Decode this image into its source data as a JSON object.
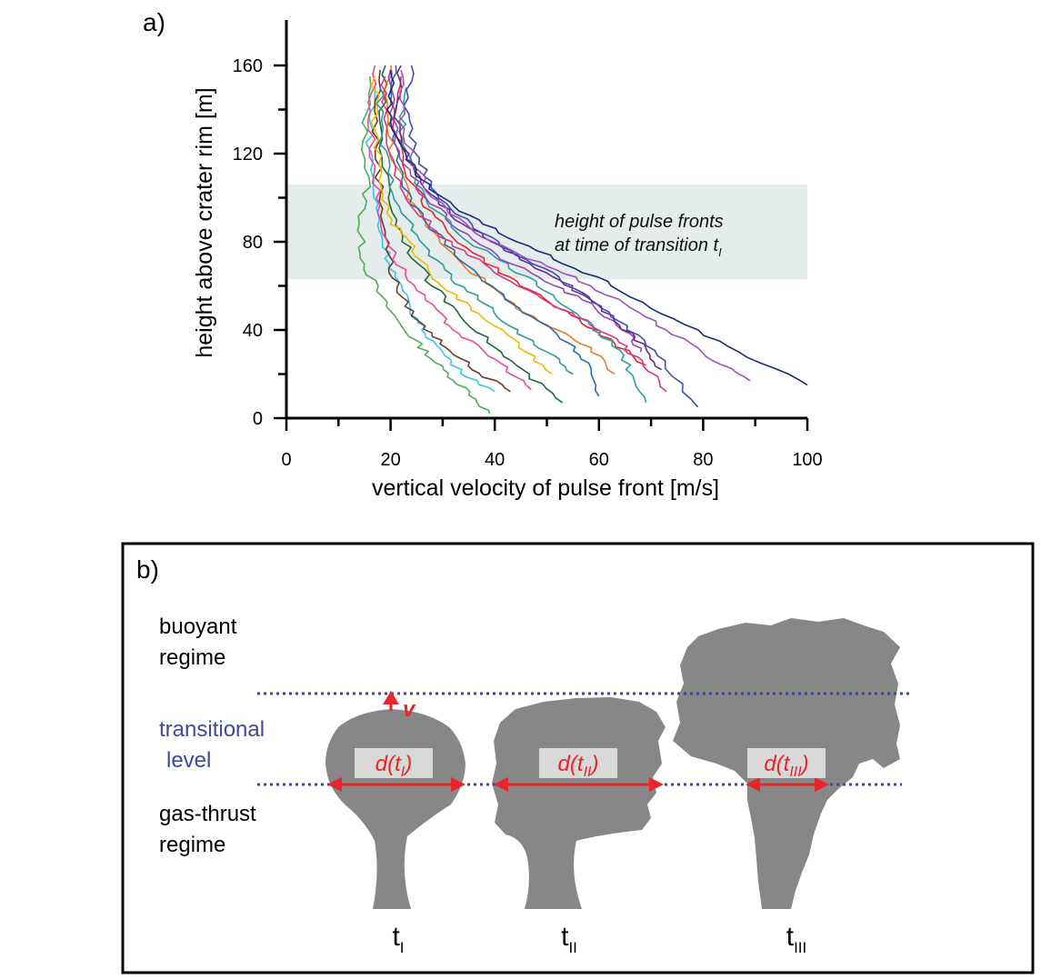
{
  "panel_a": {
    "label": "a)",
    "annotation_line1": "height of pulse fronts",
    "annotation_line2": "at time of transition t",
    "annotation_sub": "I"
  },
  "panel_b": {
    "label": "b)",
    "buoyant_1": "buoyant",
    "buoyant_2": "regime",
    "trans_1": "transitional",
    "trans_2": "level",
    "gas_1": "gas-thrust",
    "gas_2": "regime",
    "v_label": "v",
    "plumes": [
      {
        "d_main": "d(t",
        "d_sub": "I",
        "d_close": ")",
        "t_main": "t",
        "t_sub": "I"
      },
      {
        "d_main": "d(t",
        "d_sub": "II",
        "d_close": ")",
        "t_main": "t",
        "t_sub": "II"
      },
      {
        "d_main": "d(t",
        "d_sub": "III",
        "d_close": ")",
        "t_main": "t",
        "t_sub": "III"
      }
    ],
    "colors": {
      "plume": "#878787",
      "arrow": "#e8262a",
      "level_line": "#3b4aa0",
      "label_box": "#d9d9d9"
    }
  },
  "chart_data": {
    "type": "line",
    "title": "",
    "xlabel": "vertical velocity of pulse front [m/s]",
    "ylabel": "height above crater rim [m]",
    "xlim": [
      0,
      100
    ],
    "ylim": [
      0,
      170
    ],
    "x_ticks": [
      0,
      20,
      40,
      60,
      80,
      100
    ],
    "y_ticks": [
      0,
      40,
      80,
      120,
      160
    ],
    "shaded_band": {
      "y_from": 63,
      "y_to": 106,
      "x_from": 0,
      "x_to": 100,
      "color": "#e4ecec"
    },
    "grid": false,
    "legend": "none",
    "series": [
      {
        "color": "#4caf50",
        "points": [
          [
            16,
            155
          ],
          [
            15,
            130
          ],
          [
            15.5,
            105
          ],
          [
            14,
            85
          ],
          [
            15,
            70
          ],
          [
            18,
            55
          ],
          [
            22,
            42
          ],
          [
            26,
            32
          ],
          [
            30,
            22
          ],
          [
            35,
            12
          ],
          [
            39,
            2
          ]
        ]
      },
      {
        "color": "#35c4f0",
        "points": [
          [
            17,
            150
          ],
          [
            16,
            125
          ],
          [
            17,
            100
          ],
          [
            18,
            85
          ],
          [
            20,
            70
          ],
          [
            22,
            58
          ],
          [
            25,
            45
          ],
          [
            28,
            35
          ],
          [
            33,
            22
          ],
          [
            40,
            12
          ]
        ]
      },
      {
        "color": "#6b3b2a",
        "points": [
          [
            18,
            158
          ],
          [
            17,
            130
          ],
          [
            18,
            105
          ],
          [
            19,
            85
          ],
          [
            20,
            68
          ],
          [
            22,
            55
          ],
          [
            26,
            42
          ],
          [
            31,
            32
          ],
          [
            36,
            22
          ],
          [
            43,
            12
          ]
        ]
      },
      {
        "color": "#e84a9a",
        "points": [
          [
            17,
            160
          ],
          [
            16,
            135
          ],
          [
            17,
            110
          ],
          [
            18,
            90
          ],
          [
            21,
            72
          ],
          [
            25,
            58
          ],
          [
            30,
            45
          ],
          [
            35,
            35
          ],
          [
            41,
            25
          ],
          [
            47,
            13
          ]
        ]
      },
      {
        "color": "#1a6a3a",
        "points": [
          [
            19,
            160
          ],
          [
            18,
            135
          ],
          [
            19,
            110
          ],
          [
            21,
            90
          ],
          [
            24,
            75
          ],
          [
            28,
            60
          ],
          [
            34,
            46
          ],
          [
            40,
            32
          ],
          [
            46,
            20
          ],
          [
            53,
            7
          ]
        ]
      },
      {
        "color": "#f2b800",
        "points": [
          [
            17,
            155
          ],
          [
            17,
            130
          ],
          [
            18,
            108
          ],
          [
            20,
            90
          ],
          [
            24,
            78
          ],
          [
            28,
            65
          ],
          [
            33,
            54
          ],
          [
            39,
            44
          ],
          [
            45,
            32
          ],
          [
            51,
            20
          ]
        ]
      },
      {
        "color": "#2a9a9a",
        "points": [
          [
            18,
            150
          ],
          [
            18,
            128
          ],
          [
            20,
            108
          ],
          [
            23,
            90
          ],
          [
            27,
            76
          ],
          [
            32,
            63
          ],
          [
            38,
            52
          ],
          [
            44,
            40
          ],
          [
            50,
            30
          ],
          [
            55,
            20
          ]
        ]
      },
      {
        "color": "#f07820",
        "points": [
          [
            20,
            160
          ],
          [
            19,
            135
          ],
          [
            21,
            115
          ],
          [
            24,
            97
          ],
          [
            29,
            82
          ],
          [
            35,
            68
          ],
          [
            42,
            54
          ],
          [
            50,
            42
          ],
          [
            58,
            32
          ],
          [
            63,
            20
          ]
        ]
      },
      {
        "color": "#2a6ab0",
        "points": [
          [
            21,
            160
          ],
          [
            20,
            140
          ],
          [
            21,
            120
          ],
          [
            23,
            102
          ],
          [
            27,
            88
          ],
          [
            33,
            74
          ],
          [
            39,
            60
          ],
          [
            46,
            48
          ],
          [
            53,
            36
          ],
          [
            58,
            25
          ],
          [
            60,
            10
          ]
        ]
      },
      {
        "color": "#e8262a",
        "points": [
          [
            22,
            155
          ],
          [
            21,
            132
          ],
          [
            23,
            112
          ],
          [
            27,
            96
          ],
          [
            32,
            82
          ],
          [
            40,
            68
          ],
          [
            48,
            56
          ],
          [
            56,
            45
          ],
          [
            63,
            34
          ],
          [
            69,
            24
          ]
        ]
      },
      {
        "color": "#26a69a",
        "points": [
          [
            23,
            150
          ],
          [
            22,
            130
          ],
          [
            24,
            112
          ],
          [
            28,
            96
          ],
          [
            34,
            82
          ],
          [
            42,
            70
          ],
          [
            50,
            58
          ],
          [
            57,
            45
          ],
          [
            62,
            35
          ],
          [
            66,
            22
          ],
          [
            69,
            7
          ]
        ]
      },
      {
        "color": "#9c44b8",
        "points": [
          [
            20,
            158
          ],
          [
            20,
            138
          ],
          [
            22,
            118
          ],
          [
            26,
            102
          ],
          [
            32,
            88
          ],
          [
            40,
            74
          ],
          [
            50,
            62
          ],
          [
            58,
            52
          ],
          [
            65,
            40
          ],
          [
            68,
            30
          ]
        ]
      },
      {
        "color": "#6a2a90",
        "points": [
          [
            22,
            160
          ],
          [
            21,
            140
          ],
          [
            23,
            120
          ],
          [
            27,
            104
          ],
          [
            33,
            90
          ],
          [
            41,
            78
          ],
          [
            50,
            66
          ],
          [
            58,
            55
          ],
          [
            64,
            42
          ],
          [
            69,
            32
          ],
          [
            72,
            22
          ]
        ]
      },
      {
        "color": "#d83888",
        "points": [
          [
            19,
            155
          ],
          [
            19,
            132
          ],
          [
            21,
            110
          ],
          [
            25,
            94
          ],
          [
            31,
            80
          ],
          [
            39,
            68
          ],
          [
            48,
            56
          ],
          [
            56,
            46
          ],
          [
            63,
            36
          ],
          [
            68,
            26
          ],
          [
            73,
            12
          ]
        ]
      },
      {
        "color": "#404cb0",
        "points": [
          [
            24,
            160
          ],
          [
            23,
            138
          ],
          [
            25,
            118
          ],
          [
            29,
            102
          ],
          [
            35,
            88
          ],
          [
            43,
            76
          ],
          [
            52,
            64
          ],
          [
            59,
            52
          ],
          [
            66,
            40
          ],
          [
            72,
            26
          ],
          [
            79,
            5
          ]
        ]
      },
      {
        "color": "#a050c0",
        "points": [
          [
            22,
            158
          ],
          [
            22,
            138
          ],
          [
            24,
            118
          ],
          [
            28,
            100
          ],
          [
            35,
            86
          ],
          [
            45,
            74
          ],
          [
            55,
            64
          ],
          [
            65,
            52
          ],
          [
            73,
            40
          ],
          [
            81,
            28
          ],
          [
            89,
            17
          ]
        ]
      },
      {
        "color": "#1a2a78",
        "points": [
          [
            20,
            158
          ],
          [
            20,
            140
          ],
          [
            22,
            122
          ],
          [
            26,
            108
          ],
          [
            32,
            96
          ],
          [
            41,
            84
          ],
          [
            52,
            72
          ],
          [
            63,
            60
          ],
          [
            74,
            45
          ],
          [
            87,
            30
          ],
          [
            100,
            15
          ]
        ]
      }
    ]
  }
}
